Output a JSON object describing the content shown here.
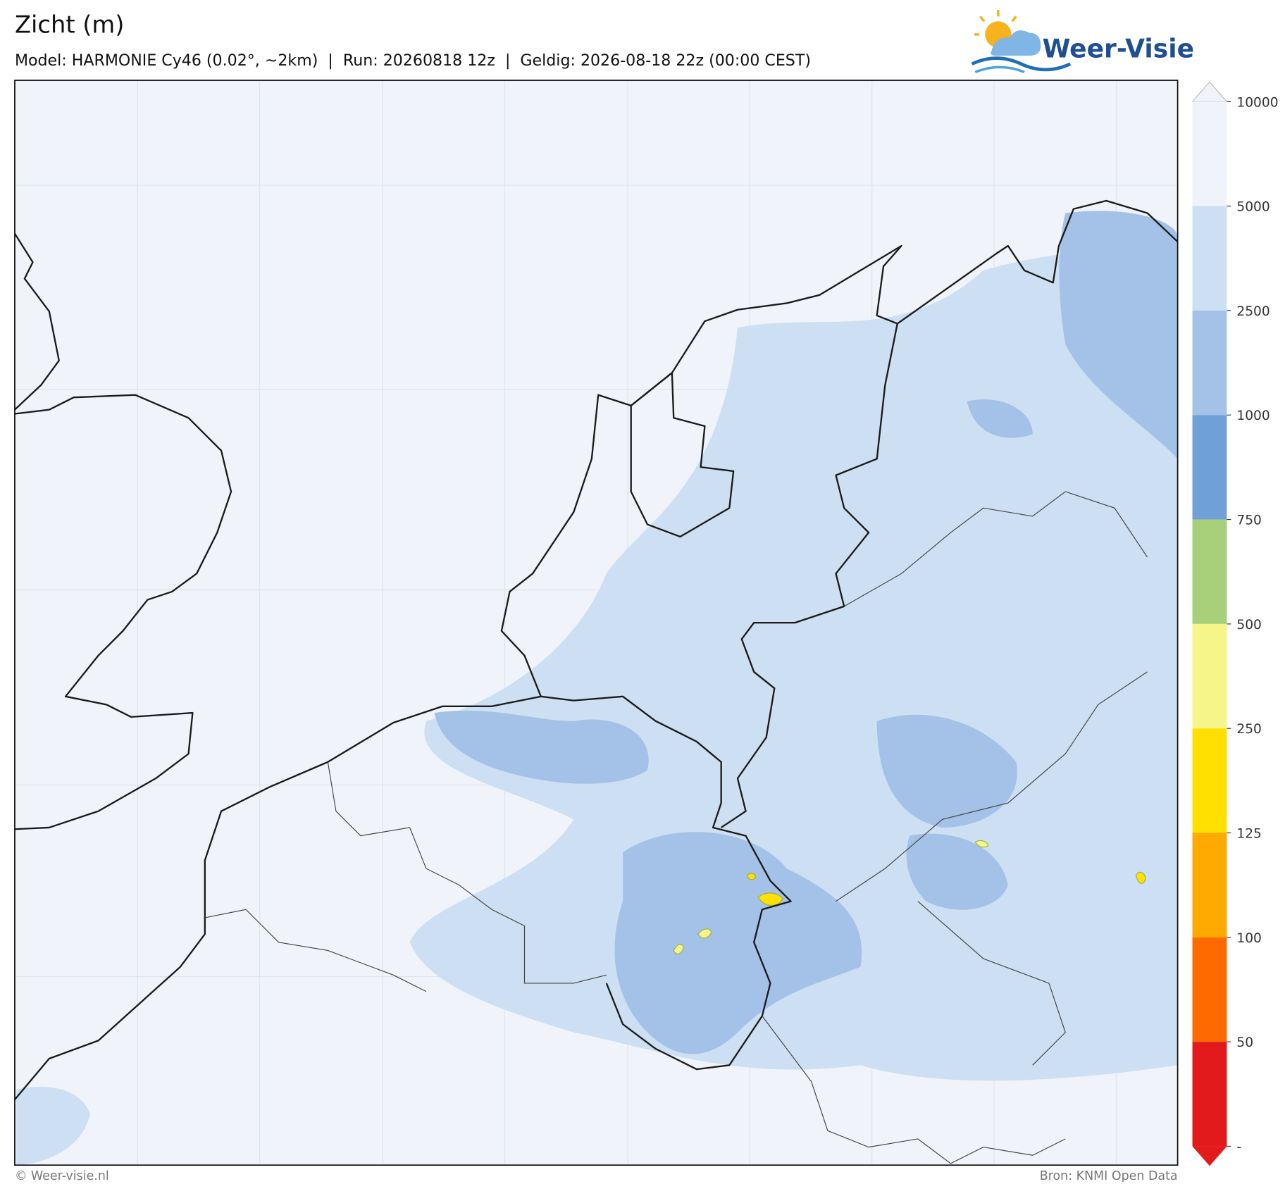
{
  "header": {
    "title": "Zicht (m)",
    "subtitle": "Model: HARMONIE Cy46 (0.02°, ~2km)  |  Run: 20260818 12z  |  Geldig: 2026-08-18 22z (00:00 CEST)"
  },
  "logo": {
    "text": "Weer-Visie"
  },
  "colorbar": {
    "ticks": [
      10000,
      5000,
      2500,
      1000,
      750,
      500,
      250,
      125,
      100,
      50
    ],
    "bottom_label": "-",
    "colors": [
      "#f0f4fa",
      "#cddff2",
      "#a4c2e8",
      "#6fa1d8",
      "#a8cf7a",
      "#f5f58a",
      "#ffe000",
      "#ffaa00",
      "#ff6a00",
      "#e31a1c"
    ]
  },
  "footer": {
    "left": "© Weer-visie.nl",
    "right": "Bron: KNMI Open Data"
  }
}
